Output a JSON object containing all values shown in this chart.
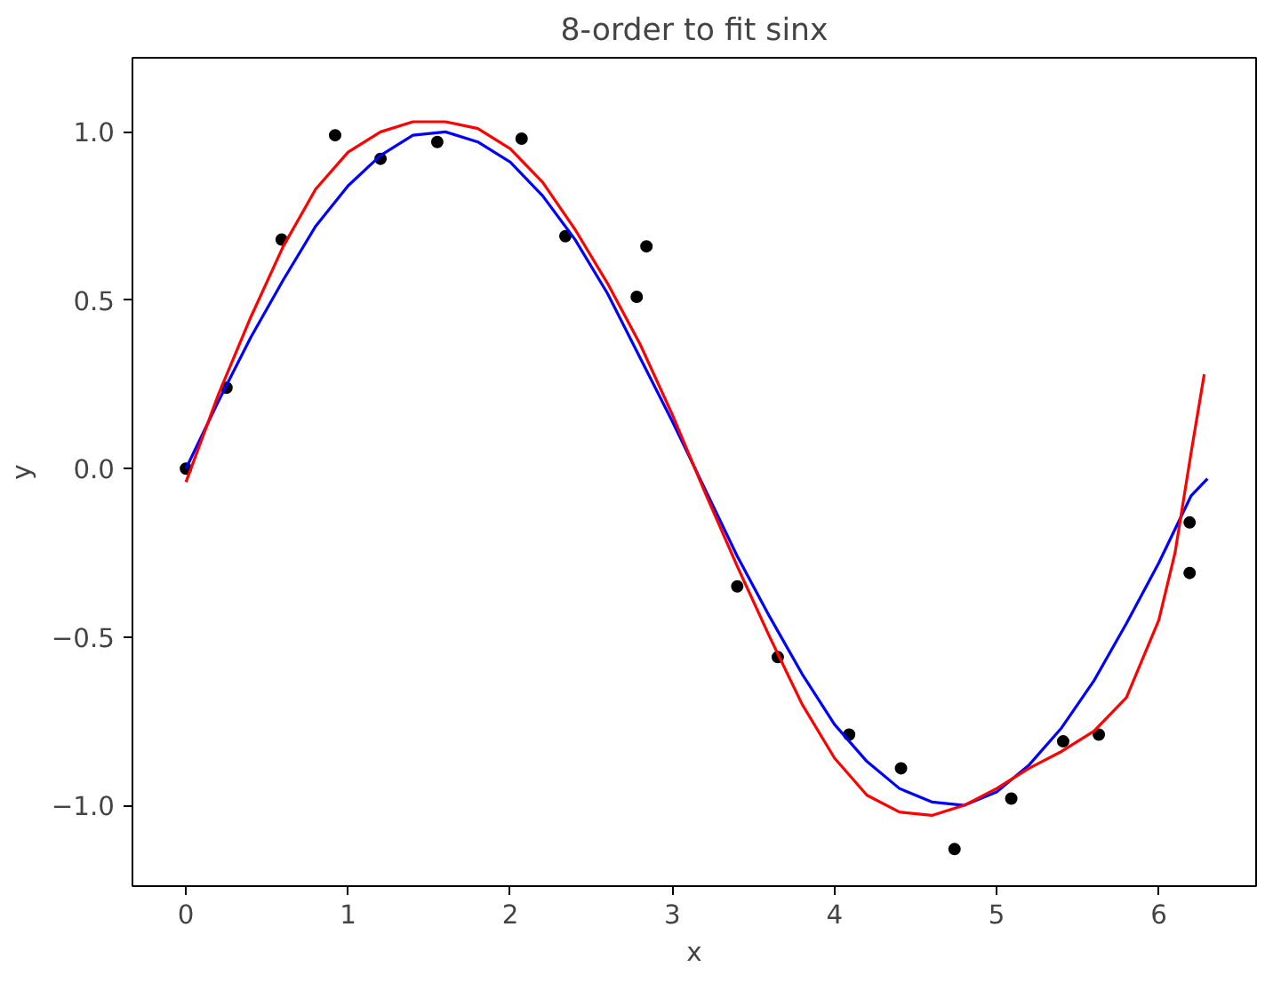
{
  "chart_data": {
    "type": "line",
    "title": "8-order to fit sinx",
    "xlabel": "x",
    "ylabel": "y",
    "xlim": [
      -0.33,
      6.6
    ],
    "ylim": [
      -1.24,
      1.22
    ],
    "xticks": [
      0,
      1,
      2,
      3,
      4,
      5,
      6
    ],
    "yticks": [
      {
        "value": -1.0,
        "label": "−1.0"
      },
      {
        "value": -0.5,
        "label": "−0.5"
      },
      {
        "value": 0.0,
        "label": "0.0"
      },
      {
        "value": 0.5,
        "label": "0.5"
      },
      {
        "value": 1.0,
        "label": "1.0"
      }
    ],
    "grid": false,
    "series": [
      {
        "type": "scatter",
        "marker": "circle",
        "color": "#000000",
        "x": [
          0,
          0.25,
          0.59,
          0.92,
          1.2,
          1.55,
          2.07,
          2.34,
          2.78,
          2.84,
          3.4,
          3.65,
          4.09,
          4.41,
          4.74,
          5.09,
          5.41,
          5.63,
          6.19,
          6.19
        ],
        "values": [
          0.0,
          0.24,
          0.68,
          0.99,
          0.92,
          0.97,
          0.98,
          0.69,
          0.51,
          0.66,
          -0.35,
          -0.56,
          -0.79,
          -0.89,
          -1.13,
          -0.98,
          -0.81,
          -0.79,
          -0.16,
          -0.31
        ]
      },
      {
        "color": "#0000ff",
        "x": [
          0,
          0.2,
          0.4,
          0.6,
          0.8,
          1.0,
          1.2,
          1.4,
          1.6,
          1.8,
          2.0,
          2.2,
          2.4,
          2.6,
          2.8,
          3.0,
          3.2,
          3.4,
          3.6,
          3.8,
          4.0,
          4.2,
          4.4,
          4.6,
          4.8,
          5.0,
          5.2,
          5.4,
          5.6,
          5.8,
          6.0,
          6.2,
          6.3
        ],
        "values": [
          0.0,
          0.2,
          0.39,
          0.56,
          0.72,
          0.84,
          0.93,
          0.99,
          1.0,
          0.97,
          0.91,
          0.81,
          0.68,
          0.52,
          0.33,
          0.14,
          -0.06,
          -0.26,
          -0.44,
          -0.61,
          -0.76,
          -0.87,
          -0.95,
          -0.99,
          -1.0,
          -0.96,
          -0.88,
          -0.77,
          -0.63,
          -0.46,
          -0.28,
          -0.08,
          -0.03
        ]
      },
      {
        "color": "#ff0000",
        "x": [
          0,
          0.2,
          0.4,
          0.6,
          0.8,
          1.0,
          1.2,
          1.4,
          1.6,
          1.8,
          2.0,
          2.2,
          2.4,
          2.6,
          2.8,
          3.0,
          3.2,
          3.4,
          3.6,
          3.8,
          4.0,
          4.2,
          4.4,
          4.6,
          4.8,
          5.0,
          5.2,
          5.4,
          5.6,
          5.8,
          6.0,
          6.1,
          6.2,
          6.28
        ],
        "values": [
          -0.04,
          0.22,
          0.45,
          0.66,
          0.83,
          0.94,
          1.0,
          1.03,
          1.03,
          1.01,
          0.95,
          0.85,
          0.71,
          0.55,
          0.37,
          0.16,
          -0.07,
          -0.29,
          -0.5,
          -0.7,
          -0.86,
          -0.97,
          -1.02,
          -1.03,
          -1.0,
          -0.95,
          -0.89,
          -0.84,
          -0.78,
          -0.68,
          -0.45,
          -0.25,
          0.05,
          0.28
        ]
      }
    ]
  }
}
